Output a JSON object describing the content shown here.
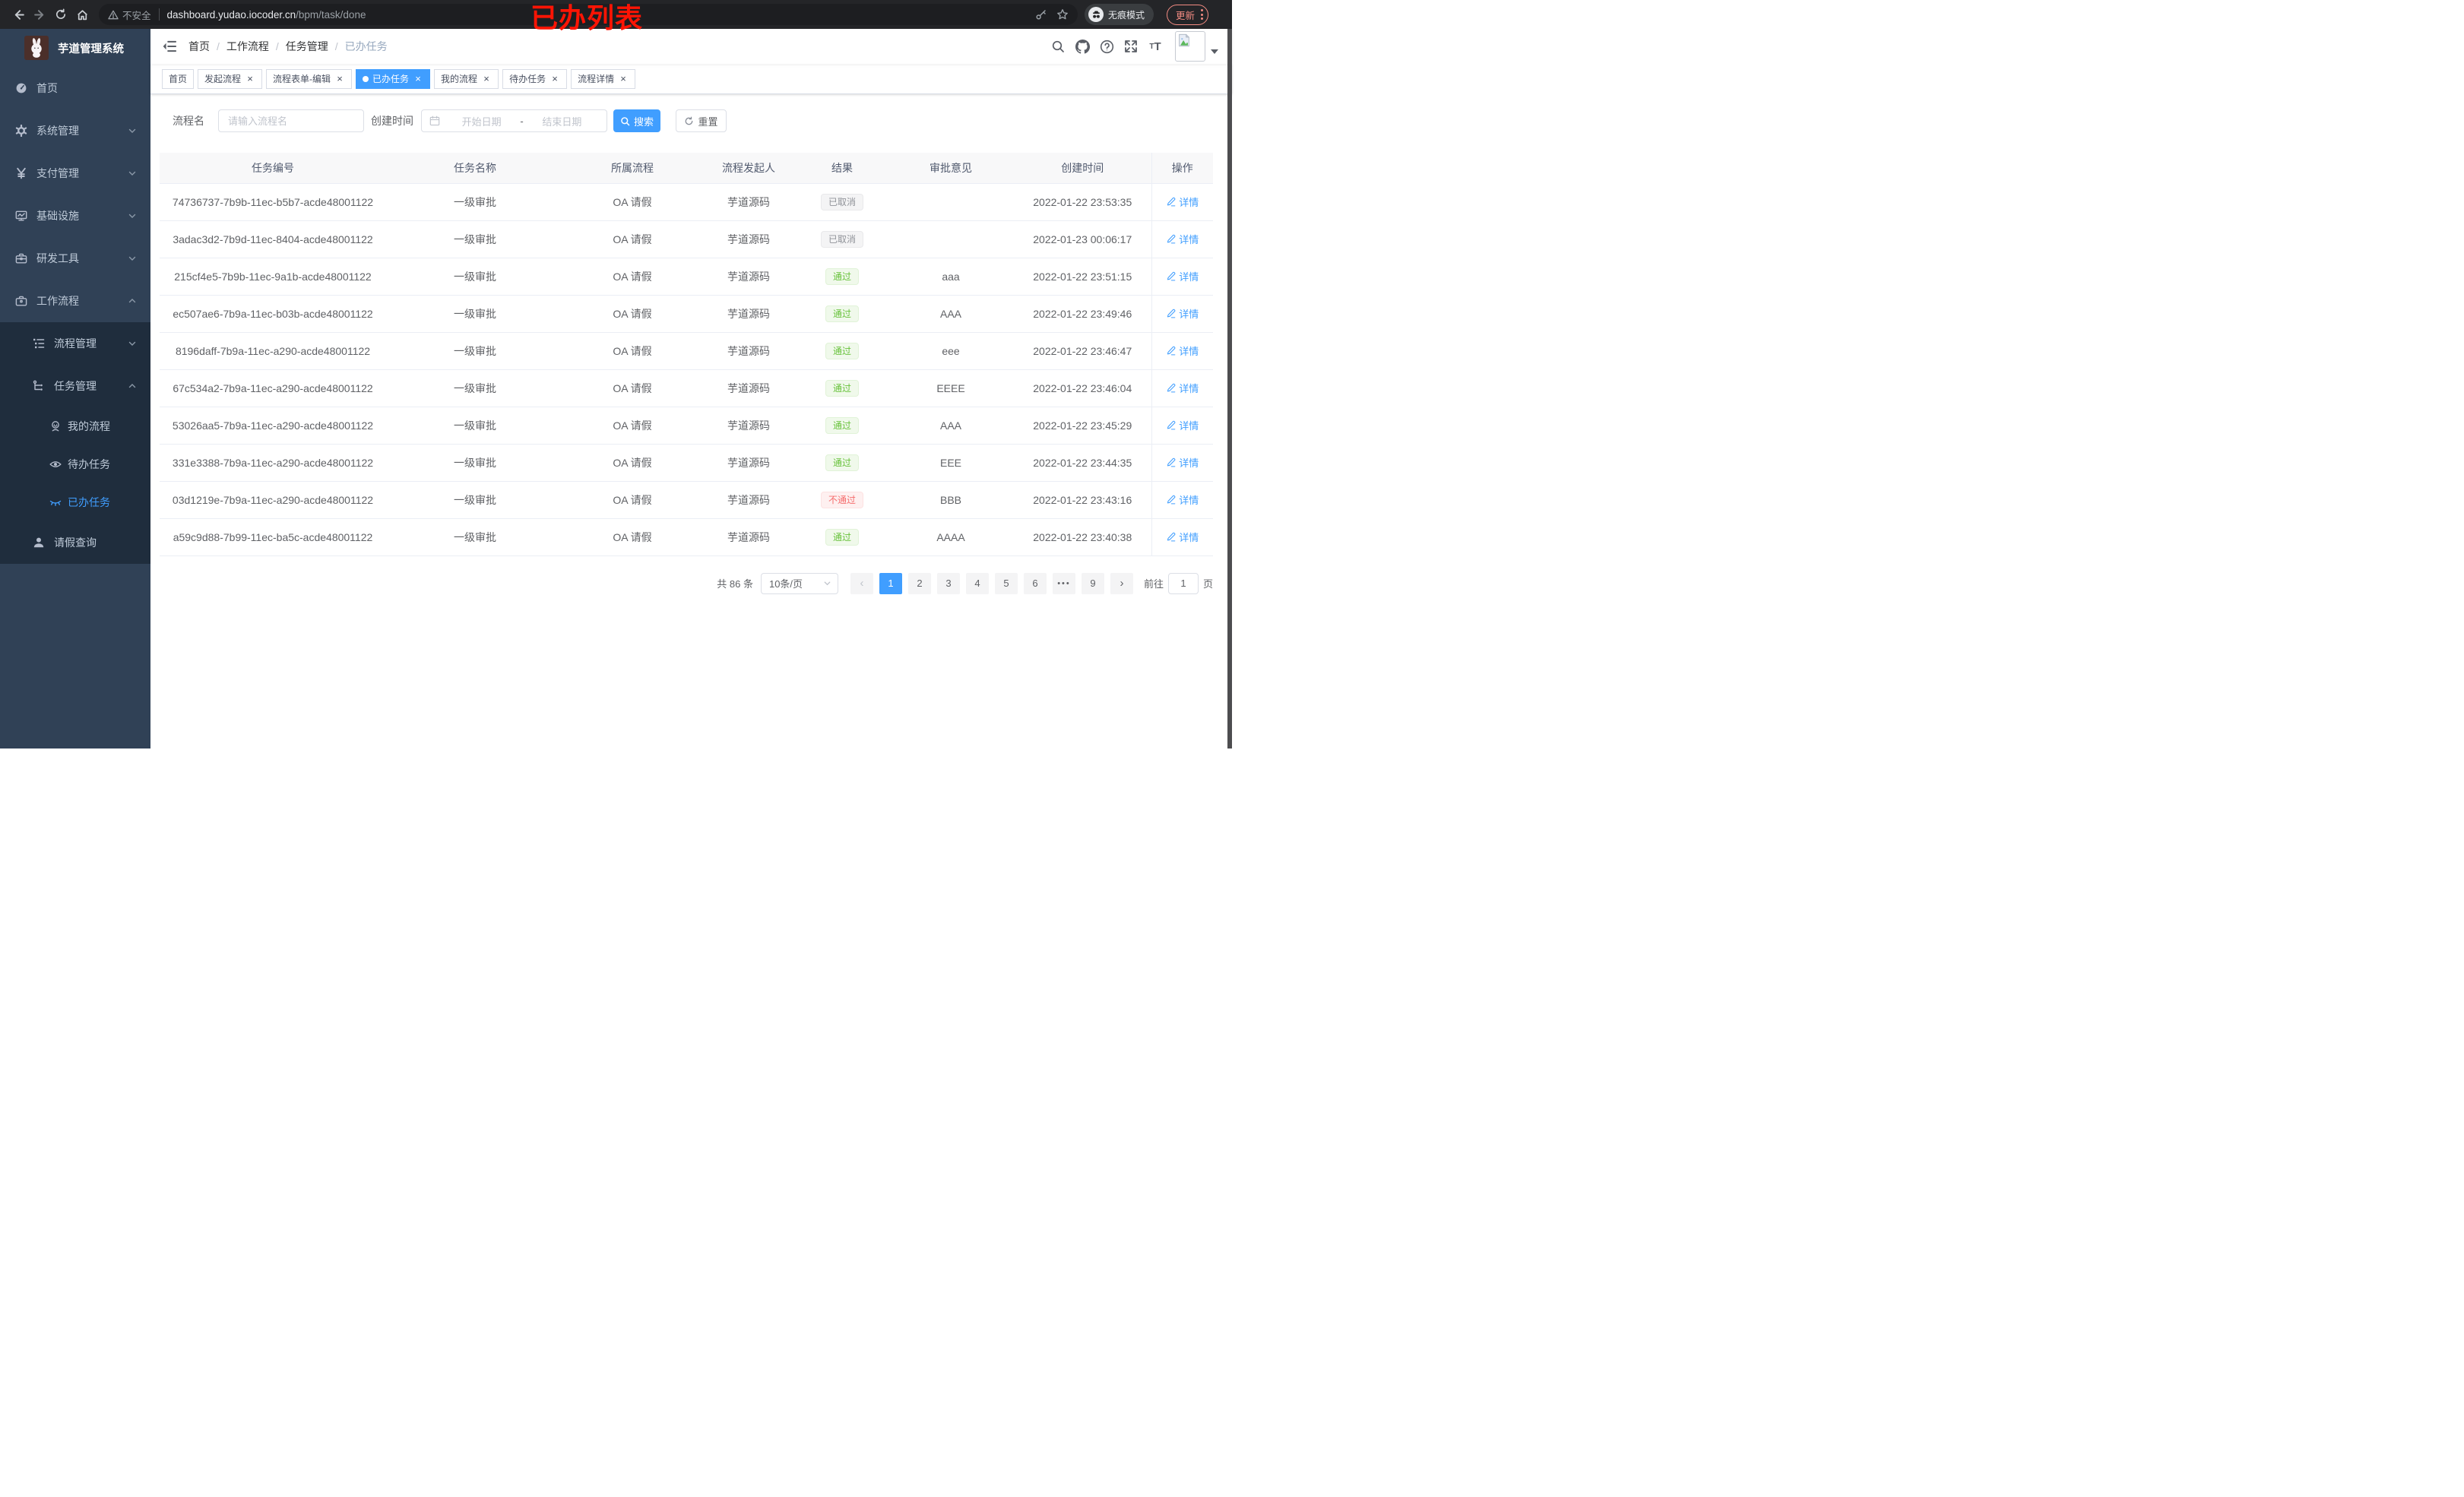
{
  "browser": {
    "security_label": "不安全",
    "url_host": "dashboard.yudao.iocoder.cn",
    "url_path": "/bpm/task/done",
    "incognito_label": "无痕模式",
    "update_label": "更新"
  },
  "annotation": {
    "text": "已办列表",
    "color": "#fe1404"
  },
  "sidebar": {
    "logo_title": "芋道管理系统",
    "items": [
      {
        "label": "首页"
      },
      {
        "label": "系统管理"
      },
      {
        "label": "支付管理"
      },
      {
        "label": "基础设施"
      },
      {
        "label": "研发工具"
      },
      {
        "label": "工作流程"
      }
    ],
    "workflow_children": [
      {
        "label": "流程管理"
      },
      {
        "label": "任务管理"
      }
    ],
    "task_children": [
      {
        "label": "我的流程"
      },
      {
        "label": "待办任务"
      },
      {
        "label": "已办任务"
      }
    ],
    "leave_item": {
      "label": "请假查询"
    }
  },
  "navbar": {
    "breadcrumb": [
      "首页",
      "工作流程",
      "任务管理",
      "已办任务"
    ]
  },
  "tabs": [
    {
      "label": "首页",
      "closable": false,
      "active": false
    },
    {
      "label": "发起流程",
      "closable": true,
      "active": false
    },
    {
      "label": "流程表单-编辑",
      "closable": true,
      "active": false
    },
    {
      "label": "已办任务",
      "closable": true,
      "active": true
    },
    {
      "label": "我的流程",
      "closable": true,
      "active": false
    },
    {
      "label": "待办任务",
      "closable": true,
      "active": false
    },
    {
      "label": "流程详情",
      "closable": true,
      "active": false
    }
  ],
  "filters": {
    "name_label": "流程名",
    "name_placeholder": "请输入流程名",
    "time_label": "创建时间",
    "start_placeholder": "开始日期",
    "range_separator": "-",
    "end_placeholder": "结束日期",
    "search_label": "搜索",
    "reset_label": "重置"
  },
  "table": {
    "columns": [
      "任务编号",
      "任务名称",
      "所属流程",
      "流程发起人",
      "结果",
      "审批意见",
      "创建时间",
      "操作"
    ],
    "detail_label": "详情",
    "rows": [
      {
        "id": "74736737-7b9b-11ec-b5b7-acde48001122",
        "name": "一级审批",
        "process": "OA 请假",
        "initiator": "芋道源码",
        "result": "已取消",
        "result_type": "info",
        "comment": "",
        "time": "2022-01-22 23:53:35"
      },
      {
        "id": "3adac3d2-7b9d-11ec-8404-acde48001122",
        "name": "一级审批",
        "process": "OA 请假",
        "initiator": "芋道源码",
        "result": "已取消",
        "result_type": "info",
        "comment": "",
        "time": "2022-01-23 00:06:17"
      },
      {
        "id": "215cf4e5-7b9b-11ec-9a1b-acde48001122",
        "name": "一级审批",
        "process": "OA 请假",
        "initiator": "芋道源码",
        "result": "通过",
        "result_type": "success",
        "comment": "aaa",
        "time": "2022-01-22 23:51:15"
      },
      {
        "id": "ec507ae6-7b9a-11ec-b03b-acde48001122",
        "name": "一级审批",
        "process": "OA 请假",
        "initiator": "芋道源码",
        "result": "通过",
        "result_type": "success",
        "comment": "AAA",
        "time": "2022-01-22 23:49:46"
      },
      {
        "id": "8196daff-7b9a-11ec-a290-acde48001122",
        "name": "一级审批",
        "process": "OA 请假",
        "initiator": "芋道源码",
        "result": "通过",
        "result_type": "success",
        "comment": "eee",
        "time": "2022-01-22 23:46:47"
      },
      {
        "id": "67c534a2-7b9a-11ec-a290-acde48001122",
        "name": "一级审批",
        "process": "OA 请假",
        "initiator": "芋道源码",
        "result": "通过",
        "result_type": "success",
        "comment": "EEEE",
        "time": "2022-01-22 23:46:04"
      },
      {
        "id": "53026aa5-7b9a-11ec-a290-acde48001122",
        "name": "一级审批",
        "process": "OA 请假",
        "initiator": "芋道源码",
        "result": "通过",
        "result_type": "success",
        "comment": "AAA",
        "time": "2022-01-22 23:45:29"
      },
      {
        "id": "331e3388-7b9a-11ec-a290-acde48001122",
        "name": "一级审批",
        "process": "OA 请假",
        "initiator": "芋道源码",
        "result": "通过",
        "result_type": "success",
        "comment": "EEE",
        "time": "2022-01-22 23:44:35"
      },
      {
        "id": "03d1219e-7b9a-11ec-a290-acde48001122",
        "name": "一级审批",
        "process": "OA 请假",
        "initiator": "芋道源码",
        "result": "不通过",
        "result_type": "danger",
        "comment": "BBB",
        "time": "2022-01-22 23:43:16"
      },
      {
        "id": "a59c9d88-7b99-11ec-ba5c-acde48001122",
        "name": "一级审批",
        "process": "OA 请假",
        "initiator": "芋道源码",
        "result": "通过",
        "result_type": "success",
        "comment": "AAAA",
        "time": "2022-01-22 23:40:38"
      }
    ]
  },
  "pagination": {
    "total_text": "共 86 条",
    "page_size": "10条/页",
    "pages": [
      "1",
      "2",
      "3",
      "4",
      "5",
      "6",
      "...",
      "9"
    ],
    "active_page": "1",
    "goto_label": "前往",
    "goto_value": "1",
    "goto_suffix": "页",
    "accent_color": "#409eff"
  }
}
